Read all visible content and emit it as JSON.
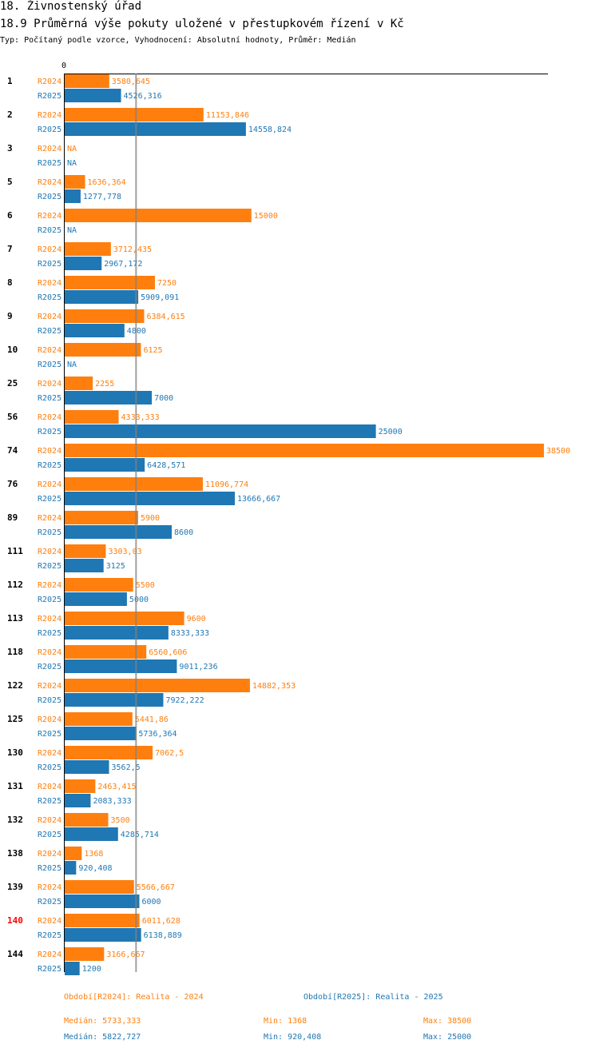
{
  "header": {
    "title": "18. Živnostenský úřad",
    "subtitle": "18.9 Průměrná výše pokuty uložené v přestupkovém řízení v Kč",
    "meta": "Typ: Počítaný podle vzorce, Vyhodnocení: Absolutní hodnoty, Průměr: Medián"
  },
  "colors": {
    "r2024": "#ff7f0e",
    "r2025": "#1f77b4",
    "highlight": "#ff0000",
    "median_line": "#808080"
  },
  "chart_data": {
    "type": "bar",
    "orientation": "horizontal",
    "xlim": [
      0,
      38500
    ],
    "x_tick_label": "0",
    "median_line_value": 5733.333,
    "series": [
      {
        "name": "R2024",
        "color": "#ff7f0e"
      },
      {
        "name": "R2025",
        "color": "#1f77b4"
      }
    ],
    "groups": [
      {
        "id": "1",
        "highlight": false,
        "values": [
          3580.645,
          4526.316
        ],
        "labels": [
          "3580,645",
          "4526,316"
        ]
      },
      {
        "id": "2",
        "highlight": false,
        "values": [
          11153.846,
          14558.824
        ],
        "labels": [
          "11153,846",
          "14558,824"
        ]
      },
      {
        "id": "3",
        "highlight": false,
        "values": [
          null,
          null
        ],
        "labels": [
          "NA",
          "NA"
        ]
      },
      {
        "id": "5",
        "highlight": false,
        "values": [
          1636.364,
          1277.778
        ],
        "labels": [
          "1636,364",
          "1277,778"
        ]
      },
      {
        "id": "6",
        "highlight": false,
        "values": [
          15000,
          null
        ],
        "labels": [
          "15000",
          "NA"
        ]
      },
      {
        "id": "7",
        "highlight": false,
        "values": [
          3712.435,
          2967.172
        ],
        "labels": [
          "3712,435",
          "2967,172"
        ]
      },
      {
        "id": "8",
        "highlight": false,
        "values": [
          7250,
          5909.091
        ],
        "labels": [
          "7250",
          "5909,091"
        ]
      },
      {
        "id": "9",
        "highlight": false,
        "values": [
          6384.615,
          4800
        ],
        "labels": [
          "6384,615",
          "4800"
        ]
      },
      {
        "id": "10",
        "highlight": false,
        "values": [
          6125,
          null
        ],
        "labels": [
          "6125",
          "NA"
        ]
      },
      {
        "id": "25",
        "highlight": false,
        "values": [
          2255,
          7000
        ],
        "labels": [
          "2255",
          "7000"
        ]
      },
      {
        "id": "56",
        "highlight": false,
        "values": [
          4333.333,
          25000
        ],
        "labels": [
          "4333,333",
          "25000"
        ]
      },
      {
        "id": "74",
        "highlight": false,
        "values": [
          38500,
          6428.571
        ],
        "labels": [
          "38500",
          "6428,571"
        ]
      },
      {
        "id": "76",
        "highlight": false,
        "values": [
          11096.774,
          13666.667
        ],
        "labels": [
          "11096,774",
          "13666,667"
        ]
      },
      {
        "id": "89",
        "highlight": false,
        "values": [
          5900,
          8600
        ],
        "labels": [
          "5900",
          "8600"
        ]
      },
      {
        "id": "111",
        "highlight": false,
        "values": [
          3303.03,
          3125
        ],
        "labels": [
          "3303,03",
          "3125"
        ]
      },
      {
        "id": "112",
        "highlight": false,
        "values": [
          5500,
          5000
        ],
        "labels": [
          "5500",
          "5000"
        ]
      },
      {
        "id": "113",
        "highlight": false,
        "values": [
          9600,
          8333.333
        ],
        "labels": [
          "9600",
          "8333,333"
        ]
      },
      {
        "id": "118",
        "highlight": false,
        "values": [
          6560.606,
          9011.236
        ],
        "labels": [
          "6560,606",
          "9011,236"
        ]
      },
      {
        "id": "122",
        "highlight": false,
        "values": [
          14882.353,
          7922.222
        ],
        "labels": [
          "14882,353",
          "7922,222"
        ]
      },
      {
        "id": "125",
        "highlight": false,
        "values": [
          5441.86,
          5736.364
        ],
        "labels": [
          "5441,86",
          "5736,364"
        ]
      },
      {
        "id": "130",
        "highlight": false,
        "values": [
          7062.5,
          3562.5
        ],
        "labels": [
          "7062,5",
          "3562,5"
        ]
      },
      {
        "id": "131",
        "highlight": false,
        "values": [
          2463.415,
          2083.333
        ],
        "labels": [
          "2463,415",
          "2083,333"
        ]
      },
      {
        "id": "132",
        "highlight": false,
        "values": [
          3500,
          4285.714
        ],
        "labels": [
          "3500",
          "4285,714"
        ]
      },
      {
        "id": "138",
        "highlight": false,
        "values": [
          1368,
          920.408
        ],
        "labels": [
          "1368",
          "920,408"
        ]
      },
      {
        "id": "139",
        "highlight": false,
        "values": [
          5566.667,
          6000
        ],
        "labels": [
          "5566,667",
          "6000"
        ]
      },
      {
        "id": "140",
        "highlight": true,
        "values": [
          6011.628,
          6138.889
        ],
        "labels": [
          "6011,628",
          "6138,889"
        ]
      },
      {
        "id": "144",
        "highlight": false,
        "values": [
          3166.667,
          1200
        ],
        "labels": [
          "3166,667",
          "1200"
        ]
      }
    ]
  },
  "footer": {
    "legend_2024": "Období[R2024]: Realita - 2024",
    "legend_2025": "Období[R2025]: Realita - 2025",
    "median_2024": "Medián: 5733,333",
    "min_2024": "Min: 1368",
    "max_2024": "Max: 38500",
    "median_2025": "Medián: 5822,727",
    "min_2025": "Min: 920,408",
    "max_2025": "Max: 25000"
  }
}
